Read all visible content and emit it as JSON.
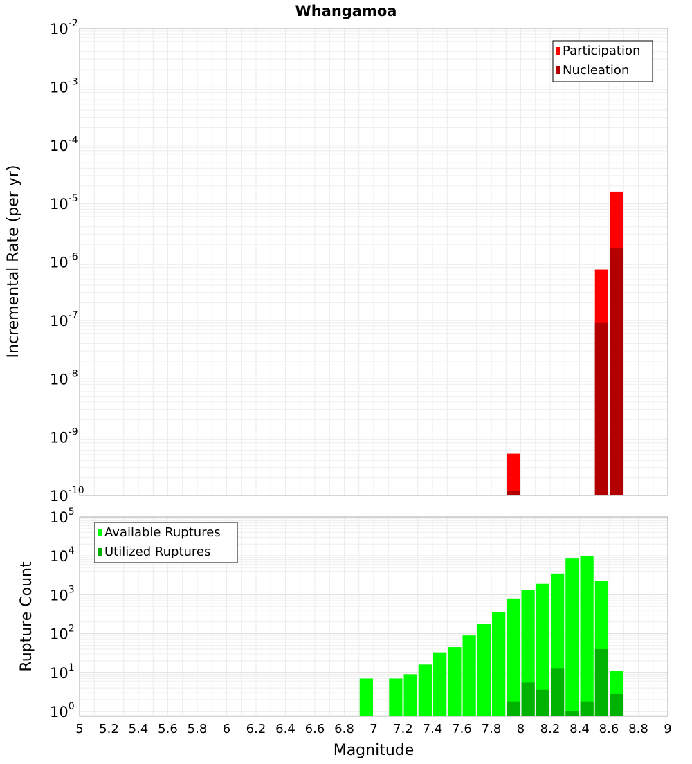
{
  "chart_data": [
    {
      "type": "bar",
      "title": "Whangamoa",
      "xlabel": "",
      "ylabel": "Incremental Rate (per yr)",
      "yscale": "log",
      "ylim": [
        1e-10,
        0.01
      ],
      "xlim": [
        5,
        9
      ],
      "grid": true,
      "legend_position": "top-right",
      "y_ticks": [
        {
          "base": "10",
          "exp": "-10"
        },
        {
          "base": "10",
          "exp": "-9"
        },
        {
          "base": "10",
          "exp": "-8"
        },
        {
          "base": "10",
          "exp": "-7"
        },
        {
          "base": "10",
          "exp": "-6"
        },
        {
          "base": "10",
          "exp": "-5"
        },
        {
          "base": "10",
          "exp": "-4"
        },
        {
          "base": "10",
          "exp": "-3"
        },
        {
          "base": "10",
          "exp": "-2"
        }
      ],
      "series": [
        {
          "name": "Participation",
          "color": "#ff0000",
          "points": [
            {
              "x": 7.95,
              "y": 5.2e-10
            },
            {
              "x": 8.55,
              "y": 7.4e-07
            },
            {
              "x": 8.65,
              "y": 1.6e-05
            }
          ]
        },
        {
          "name": "Nucleation",
          "color": "#b20000",
          "points": [
            {
              "x": 7.95,
              "y": 1.2e-10
            },
            {
              "x": 8.55,
              "y": 9e-08
            },
            {
              "x": 8.65,
              "y": 1.7e-06
            }
          ]
        }
      ]
    },
    {
      "type": "bar",
      "title": "",
      "xlabel": "Magnitude",
      "ylabel": "Rupture Count",
      "yscale": "log",
      "ylim": [
        0.75,
        100000
      ],
      "xlim": [
        5,
        9
      ],
      "grid": true,
      "legend_position": "top-left",
      "y_ticks": [
        {
          "base": "10",
          "exp": "0",
          "value": 1
        },
        {
          "base": "10",
          "exp": "1",
          "value": 10
        },
        {
          "base": "10",
          "exp": "2",
          "value": 100
        },
        {
          "base": "10",
          "exp": "3",
          "value": 1000
        },
        {
          "base": "10",
          "exp": "4",
          "value": 10000
        },
        {
          "base": "10",
          "exp": "5",
          "value": 100000
        }
      ],
      "x_ticks": [
        "5",
        "5.2",
        "5.4",
        "5.6",
        "5.8",
        "6",
        "6.2",
        "6.4",
        "6.6",
        "6.8",
        "7",
        "7.2",
        "7.4",
        "7.6",
        "7.8",
        "8",
        "8.2",
        "8.4",
        "8.6",
        "8.8",
        "9"
      ],
      "series": [
        {
          "name": "Available Ruptures",
          "color": "#00ff00",
          "points": [
            {
              "x": 6.95,
              "y": 7
            },
            {
              "x": 7.15,
              "y": 7
            },
            {
              "x": 7.25,
              "y": 9
            },
            {
              "x": 7.35,
              "y": 16
            },
            {
              "x": 7.45,
              "y": 33
            },
            {
              "x": 7.55,
              "y": 45
            },
            {
              "x": 7.65,
              "y": 90
            },
            {
              "x": 7.75,
              "y": 180
            },
            {
              "x": 7.85,
              "y": 360
            },
            {
              "x": 7.95,
              "y": 800
            },
            {
              "x": 8.05,
              "y": 1300
            },
            {
              "x": 8.15,
              "y": 1900
            },
            {
              "x": 8.25,
              "y": 3500
            },
            {
              "x": 8.35,
              "y": 8500
            },
            {
              "x": 8.45,
              "y": 10000
            },
            {
              "x": 8.55,
              "y": 2300
            },
            {
              "x": 8.65,
              "y": 11
            }
          ]
        },
        {
          "name": "Utilized Ruptures",
          "color": "#00b200",
          "points": [
            {
              "x": 7.95,
              "y": 1.8
            },
            {
              "x": 8.05,
              "y": 5.5
            },
            {
              "x": 8.15,
              "y": 3.6
            },
            {
              "x": 8.25,
              "y": 12.5
            },
            {
              "x": 8.35,
              "y": 1
            },
            {
              "x": 8.45,
              "y": 1.8
            },
            {
              "x": 8.55,
              "y": 40
            },
            {
              "x": 8.65,
              "y": 2.8
            }
          ]
        }
      ]
    }
  ]
}
